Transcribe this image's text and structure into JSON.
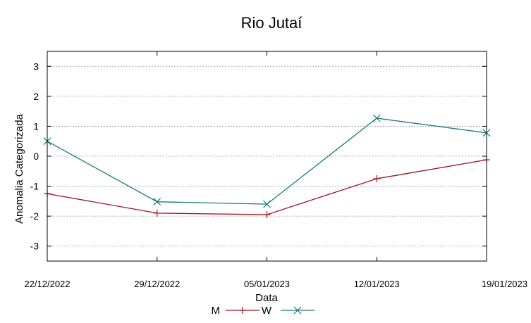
{
  "chart_data": {
    "type": "line",
    "title": "Rio Jutaí",
    "xlabel": "Data",
    "ylabel": "Anomalia Categorizada",
    "categories": [
      "22/12/2022",
      "29/12/2022",
      "05/01/2023",
      "12/01/2023",
      "19/01/2023"
    ],
    "ylim": [
      -3.5,
      3.5
    ],
    "yticks": [
      3,
      2,
      1,
      0,
      -1,
      -2,
      -3
    ],
    "ytick_labels": [
      "3",
      "2",
      "1",
      "0",
      "-1",
      "-2",
      "-3"
    ],
    "grid": true,
    "legend_position": "bottom",
    "series": [
      {
        "name": "M",
        "values": [
          -1.25,
          -1.9,
          -1.95,
          -0.75,
          -0.12
        ],
        "color": "#a0141e",
        "marker": "plus"
      },
      {
        "name": "W",
        "values": [
          0.5,
          -1.52,
          -1.6,
          1.27,
          0.78
        ],
        "color": "#1a7a7f",
        "marker": "cross"
      }
    ]
  }
}
